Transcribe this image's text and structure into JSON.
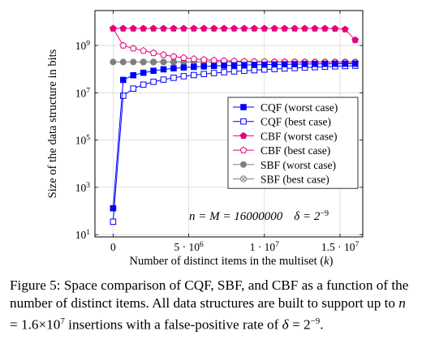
{
  "chart_data": {
    "type": "line",
    "title": "",
    "xlabel": "Number of distinct items in the multiset (k)",
    "ylabel": "Size of the data structure in bits",
    "y_scale": "log",
    "x_ticks": [
      {
        "value": 0,
        "label": "0"
      },
      {
        "value": 5000000,
        "label": "5 · 10^6"
      },
      {
        "value": 10000000,
        "label": "1 · 10^7"
      },
      {
        "value": 15000000,
        "label": "1.5 · 10^7"
      }
    ],
    "y_ticks": [
      {
        "value": 10,
        "label": "10^1"
      },
      {
        "value": 1000,
        "label": "10^3"
      },
      {
        "value": 100000,
        "label": "10^5"
      },
      {
        "value": 10000000,
        "label": "10^7"
      },
      {
        "value": 1000000000,
        "label": "10^9"
      }
    ],
    "xlim": [
      -1200000,
      16500000
    ],
    "ylim": [
      8,
      30000000000
    ],
    "grid": true,
    "legend_position": "right",
    "annotation": "n = M = 16000000   δ = 2^−9",
    "x": [
      0,
      666667,
      1333333,
      2000000,
      2666667,
      3333333,
      4000000,
      4666667,
      5333333,
      6000000,
      6666667,
      7333333,
      8000000,
      8666667,
      9333333,
      10000000,
      10666667,
      11333333,
      12000000,
      12666667,
      13333333,
      14000000,
      14666667,
      15333333,
      16000000
    ],
    "series": [
      {
        "name": "CQF (worst case)",
        "color": "#0000ff",
        "marker": "square-filled",
        "values": [
          130,
          35000000,
          55000000,
          70000000,
          85000000,
          98000000,
          108000000,
          117000000,
          124000000,
          130000000,
          136000000,
          141000000,
          145000000,
          149000000,
          152000000,
          155000000,
          158000000,
          160000000,
          162000000,
          164000000,
          166000000,
          167000000,
          168000000,
          169000000,
          170000000
        ]
      },
      {
        "name": "CQF (best case)",
        "color": "#0000ff",
        "marker": "square-open",
        "values": [
          35,
          7500000,
          15000000,
          22000000,
          29000000,
          36000000,
          43000000,
          50000000,
          56000000,
          62000000,
          68000000,
          74000000,
          80000000,
          85000000,
          90000000,
          96000000,
          101000000,
          106000000,
          111000000,
          116000000,
          121000000,
          126000000,
          131000000,
          135000000,
          140000000
        ]
      },
      {
        "name": "CBF (worst case)",
        "color": "#e6007e",
        "marker": "pentagon-filled",
        "values": [
          5200000000,
          5200000000,
          5200000000,
          5200000000,
          5200000000,
          5200000000,
          5200000000,
          5200000000,
          5200000000,
          5200000000,
          5200000000,
          5200000000,
          5200000000,
          5200000000,
          5200000000,
          5200000000,
          5200000000,
          5200000000,
          5200000000,
          5200000000,
          5200000000,
          5200000000,
          5100000000,
          4800000000,
          1700000000
        ]
      },
      {
        "name": "CBF (best case)",
        "color": "#e6007e",
        "marker": "pentagon-open",
        "values": [
          5200000000,
          1000000000,
          750000000,
          600000000,
          480000000,
          400000000,
          340000000,
          300000000,
          270000000,
          250000000,
          235000000,
          225000000,
          218000000,
          212000000,
          208000000,
          205000000,
          202000000,
          200000000,
          198000000,
          197000000,
          196000000,
          195000000,
          194000000,
          194000000,
          193000000
        ]
      },
      {
        "name": "SBF (worst case)",
        "color": "#7f7f7f",
        "marker": "circle-filled",
        "values": [
          200000000,
          200000000,
          200000000,
          200000000,
          200000000,
          200000000,
          200000000,
          200000000,
          200000000,
          200000000,
          200000000,
          200000000,
          200000000,
          200000000,
          200000000,
          200000000,
          200000000,
          200000000,
          200000000,
          200000000,
          200000000,
          200000000,
          200000000,
          200000000,
          200000000
        ]
      },
      {
        "name": "SBF (best case)",
        "color": "#7f7f7f",
        "marker": "circle-cross",
        "values": [
          null,
          null,
          null,
          200000000,
          200000000,
          200000000,
          200000000,
          200000000,
          200000000,
          200000000,
          200000000,
          200000000,
          200000000,
          200000000,
          200000000,
          200000000,
          200000000,
          200000000,
          200000000,
          200000000,
          200000000,
          200000000,
          200000000,
          200000000,
          200000000
        ]
      }
    ]
  },
  "caption": "Figure 5: Space comparison of CQF, SBF, and CBF as a function of the number of distinct items. All data structures are built to support up to n = 1.6×10^7 insertions with a false-positive rate of δ = 2^−9."
}
